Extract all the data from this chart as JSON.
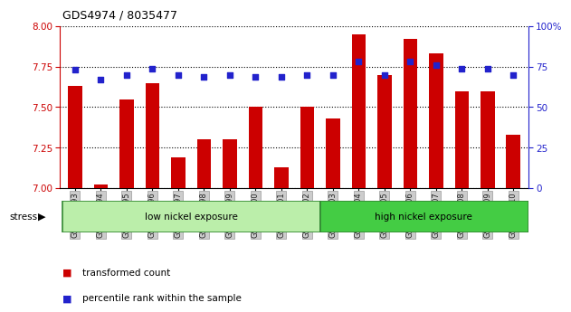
{
  "title": "GDS4974 / 8035477",
  "samples": [
    "GSM992693",
    "GSM992694",
    "GSM992695",
    "GSM992696",
    "GSM992697",
    "GSM992698",
    "GSM992699",
    "GSM992700",
    "GSM992701",
    "GSM992702",
    "GSM992703",
    "GSM992704",
    "GSM992705",
    "GSM992706",
    "GSM992707",
    "GSM992708",
    "GSM992709",
    "GSM992710"
  ],
  "transformed_count": [
    7.63,
    7.02,
    7.55,
    7.65,
    7.19,
    7.3,
    7.3,
    7.5,
    7.13,
    7.5,
    7.43,
    7.95,
    7.7,
    7.92,
    7.83,
    7.6,
    7.6,
    7.33
  ],
  "percentile_rank": [
    73,
    67,
    70,
    74,
    70,
    69,
    70,
    69,
    69,
    70,
    70,
    78,
    70,
    78,
    76,
    74,
    74,
    70
  ],
  "ylim_left": [
    7.0,
    8.0
  ],
  "ylim_right": [
    0,
    100
  ],
  "yticks_left": [
    7.0,
    7.25,
    7.5,
    7.75,
    8.0
  ],
  "yticks_right": [
    0,
    25,
    50,
    75,
    100
  ],
  "bar_color": "#cc0000",
  "dot_color": "#2222cc",
  "group1_label": "low nickel exposure",
  "group2_label": "high nickel exposure",
  "group1_count": 10,
  "group1_color": "#bbeeaa",
  "group2_color": "#44cc44",
  "stress_label": "stress",
  "legend_bar": "transformed count",
  "legend_dot": "percentile rank within the sample",
  "background_plot": "#ffffff",
  "title_color": "#000000"
}
